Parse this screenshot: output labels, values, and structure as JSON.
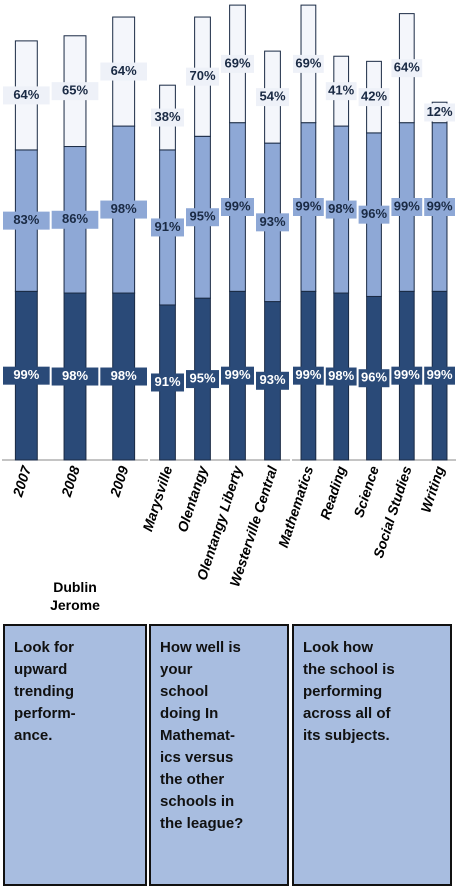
{
  "chart_data": [
    {
      "type": "bar",
      "stacked": true,
      "categories": [
        "2007",
        "2008",
        "2009"
      ],
      "xlabel": "Dublin Jerome",
      "ylim": [
        0,
        270
      ],
      "series": [
        {
          "color": "#2a4a78",
          "values": [
            99,
            98,
            98
          ],
          "value_labels": [
            "99%",
            "98%",
            "98%"
          ]
        },
        {
          "color": "#8ea8d6",
          "values": [
            83,
            86,
            98
          ],
          "value_labels": [
            "83%",
            "86%",
            "98%"
          ]
        },
        {
          "color": "#f4f6fb",
          "values": [
            64,
            65,
            64
          ],
          "value_labels": [
            "64%",
            "65%",
            "64%"
          ]
        }
      ]
    },
    {
      "type": "bar",
      "stacked": true,
      "categories": [
        "Marysville",
        "Olentangy",
        "Olentangy Liberty",
        "Westerville Central"
      ],
      "ylim": [
        0,
        270
      ],
      "series": [
        {
          "color": "#2a4a78",
          "values": [
            91,
            95,
            99,
            93
          ],
          "value_labels": [
            "91%",
            "95%",
            "99%",
            "93%"
          ]
        },
        {
          "color": "#8ea8d6",
          "values": [
            91,
            95,
            99,
            93
          ],
          "value_labels": [
            "91%",
            "95%",
            "99%",
            "93%"
          ]
        },
        {
          "color": "#f4f6fb",
          "values": [
            38,
            70,
            69,
            54
          ],
          "value_labels": [
            "38%",
            "70%",
            "69%",
            "54%"
          ]
        }
      ]
    },
    {
      "type": "bar",
      "stacked": true,
      "categories": [
        "Mathematics",
        "Reading",
        "Science",
        "Social Studies",
        "Writing"
      ],
      "ylim": [
        0,
        270
      ],
      "series": [
        {
          "color": "#2a4a78",
          "values": [
            99,
            98,
            96,
            99,
            99
          ],
          "value_labels": [
            "99%",
            "98%",
            "96%",
            "99%",
            "99%"
          ]
        },
        {
          "color": "#8ea8d6",
          "values": [
            99,
            98,
            96,
            99,
            99
          ],
          "value_labels": [
            "99%",
            "98%",
            "96%",
            "99%",
            "99%"
          ]
        },
        {
          "color": "#f4f6fb",
          "values": [
            69,
            41,
            42,
            64,
            12
          ],
          "value_labels": [
            "69%",
            "41%",
            "42%",
            "64%",
            "12%"
          ]
        }
      ]
    }
  ],
  "notes": [
    [
      "Look for",
      "upward",
      "trending",
      "perform-",
      "ance."
    ],
    [
      "How well is",
      "your",
      "school",
      "doing In",
      "Mathemat-",
      "ics versus",
      "the other",
      "schools in",
      "the league?"
    ],
    [
      "Look how",
      "the school is",
      "performing",
      "across all of",
      "its subjects."
    ]
  ]
}
